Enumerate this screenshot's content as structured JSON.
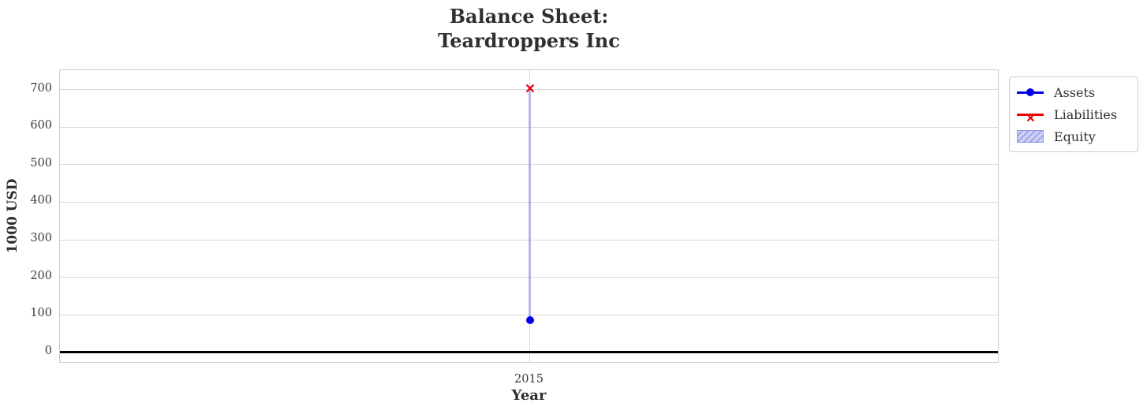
{
  "chart_data": {
    "type": "line",
    "title_lines": [
      "Balance Sheet:",
      "Teardroppers Inc"
    ],
    "xlabel": "Year",
    "ylabel": "1000 USD",
    "x": [
      2015
    ],
    "xticks": [
      "2015"
    ],
    "yticks": [
      0,
      100,
      200,
      300,
      400,
      500,
      600,
      700
    ],
    "ylim": [
      -30,
      752
    ],
    "grid": true,
    "series": [
      {
        "name": "Assets",
        "type": "line",
        "color": "#0000ee",
        "marker": "circle",
        "values": [
          85
        ]
      },
      {
        "name": "Liabilities",
        "type": "line",
        "color": "#ee0000",
        "marker": "x",
        "values": [
          710
        ]
      },
      {
        "name": "Equity",
        "type": "band",
        "facecolor": "rgba(110,115,215,0.45)",
        "legend_facecolor": "#cdd0f4",
        "hatchcolor": "#9096e4",
        "hatch": "/",
        "between": [
          "Assets",
          "Liabilities"
        ]
      }
    ],
    "zero_line": {
      "value": 0,
      "color": "#000000"
    },
    "legend": {
      "position": "outside-top-right",
      "entries": [
        "Assets",
        "Liabilities",
        "Equity"
      ]
    },
    "colors": {
      "grid": "#d9d9d9",
      "spine": "#cccccc",
      "title_text": "#2f2f2f",
      "tick_text": "#3a3a3a"
    }
  }
}
